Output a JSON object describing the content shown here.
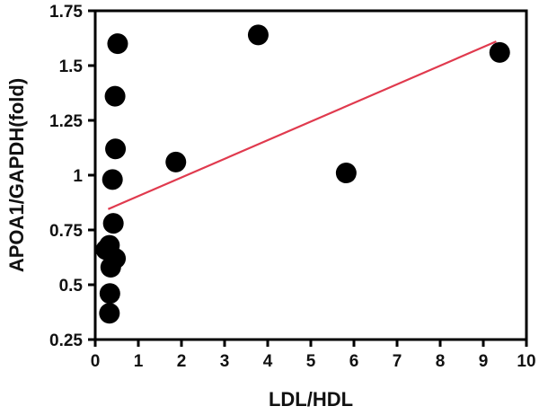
{
  "chart_data": {
    "type": "scatter",
    "title": "",
    "xlabel": "LDL/HDL",
    "ylabel": "APOA1/GAPDH(fold)",
    "xlim": [
      0,
      10
    ],
    "ylim": [
      0.25,
      1.75
    ],
    "x_ticks": [
      0,
      1,
      2,
      3,
      4,
      5,
      6,
      7,
      8,
      9,
      10
    ],
    "y_ticks": [
      0.25,
      0.5,
      0.75,
      1,
      1.25,
      1.5,
      1.75
    ],
    "x_tick_labels": [
      "0",
      "1",
      "2",
      "3",
      "4",
      "5",
      "6",
      "7",
      "8",
      "9",
      "10"
    ],
    "y_tick_labels": [
      "0.25",
      "0.5",
      "0.75",
      "1",
      "1.25",
      "1.5",
      "1.75"
    ],
    "grid": false,
    "marker_color": "#000000",
    "trendline_color": "#e03a4e",
    "series": [
      {
        "points": [
          {
            "x": 0.52,
            "y": 1.6
          },
          {
            "x": 0.46,
            "y": 1.36
          },
          {
            "x": 0.47,
            "y": 1.12
          },
          {
            "x": 0.4,
            "y": 0.98
          },
          {
            "x": 0.42,
            "y": 0.78
          },
          {
            "x": 0.25,
            "y": 0.66
          },
          {
            "x": 0.33,
            "y": 0.68
          },
          {
            "x": 0.47,
            "y": 0.62
          },
          {
            "x": 0.36,
            "y": 0.58
          },
          {
            "x": 0.34,
            "y": 0.46
          },
          {
            "x": 0.33,
            "y": 0.37
          },
          {
            "x": 1.87,
            "y": 1.06
          },
          {
            "x": 3.78,
            "y": 1.64
          },
          {
            "x": 5.82,
            "y": 1.01
          },
          {
            "x": 9.38,
            "y": 1.56
          }
        ]
      }
    ],
    "trendline": {
      "x": [
        0.3,
        9.3
      ],
      "y": [
        0.845,
        1.61
      ]
    }
  }
}
